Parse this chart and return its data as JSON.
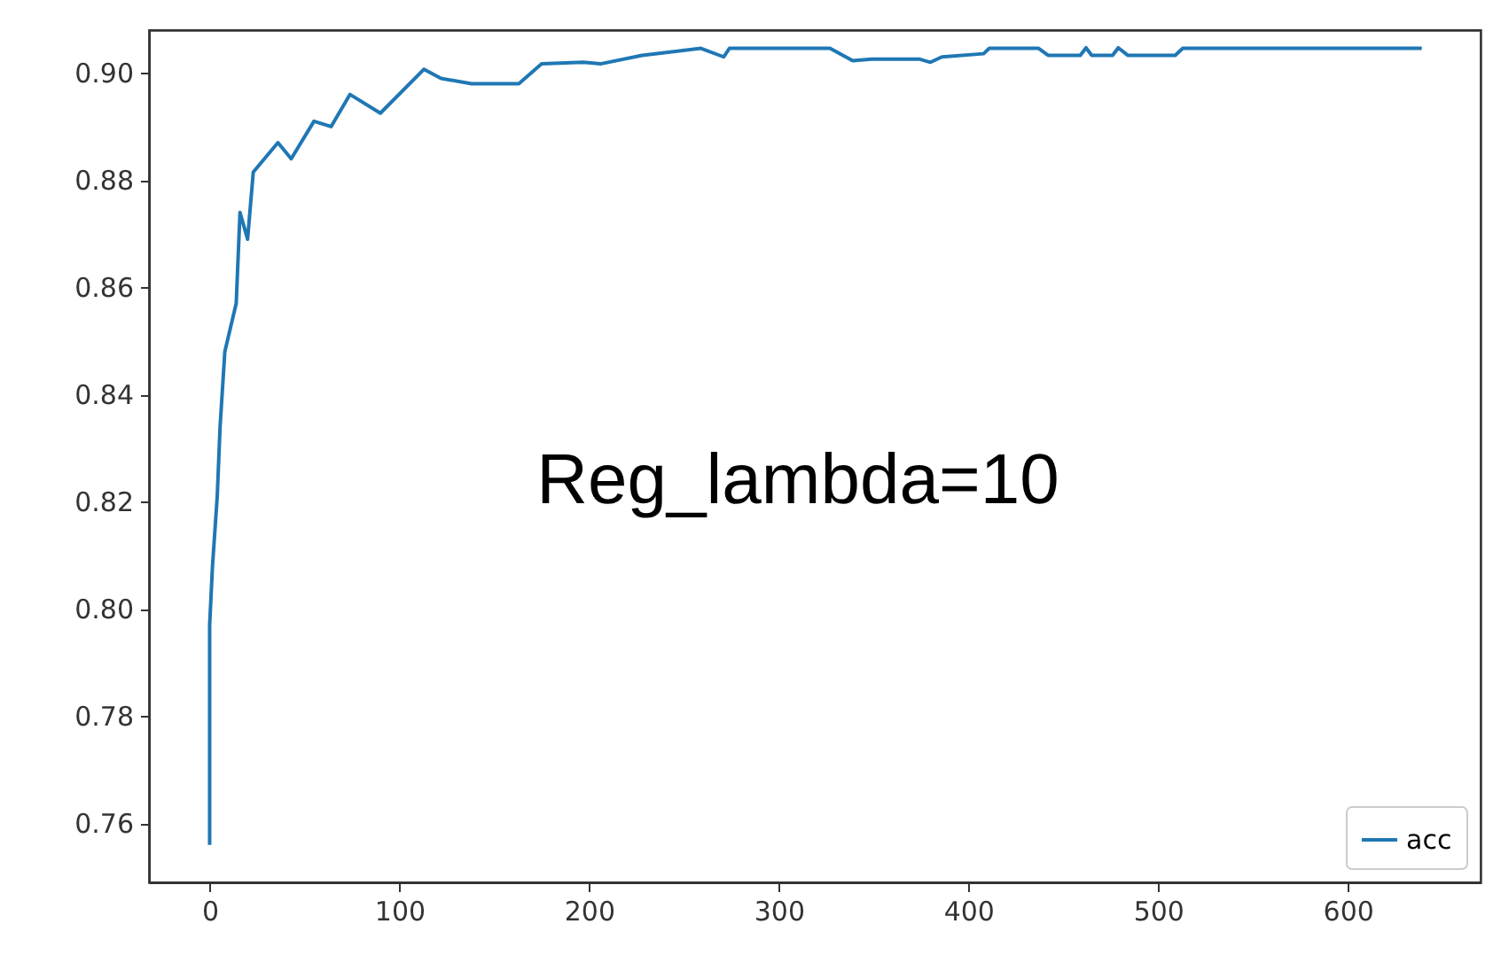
{
  "chart_data": {
    "type": "line",
    "x": [
      0,
      0,
      1.5,
      4,
      5.5,
      8,
      14,
      16,
      20,
      23,
      36,
      43,
      55,
      64,
      74,
      90,
      113,
      122,
      138,
      163,
      175,
      197,
      206,
      228,
      259,
      271,
      274,
      327,
      339,
      349,
      374,
      380,
      386,
      408,
      411,
      437,
      442,
      459,
      462,
      465,
      476,
      479,
      484,
      509,
      513,
      639
    ],
    "series": [
      {
        "name": "acc",
        "color": "#1f77b4",
        "values": [
          0.756,
          0.797,
          0.808,
          0.821,
          0.834,
          0.848,
          0.857,
          0.874,
          0.869,
          0.8815,
          0.887,
          0.884,
          0.891,
          0.89,
          0.896,
          0.8925,
          0.9007,
          0.899,
          0.898,
          0.898,
          0.9017,
          0.902,
          0.9017,
          0.9033,
          0.9046,
          0.903,
          0.9046,
          0.9046,
          0.9023,
          0.9026,
          0.9026,
          0.902,
          0.903,
          0.9036,
          0.9046,
          0.9046,
          0.9033,
          0.9033,
          0.9047,
          0.9033,
          0.9033,
          0.9047,
          0.9033,
          0.9033,
          0.9046,
          0.9046
        ]
      }
    ],
    "xlim": [
      -32,
      670
    ],
    "xticks": [
      0,
      100,
      200,
      300,
      400,
      500,
      600
    ],
    "ylim": [
      0.749,
      0.908
    ],
    "yticks": [
      {
        "value": 0.76,
        "label": "0.76"
      },
      {
        "value": 0.78,
        "label": "0.78"
      },
      {
        "value": 0.8,
        "label": "0.80"
      },
      {
        "value": 0.82,
        "label": "0.82"
      },
      {
        "value": 0.84,
        "label": "0.84"
      },
      {
        "value": 0.86,
        "label": "0.86"
      },
      {
        "value": 0.88,
        "label": "0.88"
      },
      {
        "value": 0.9,
        "label": "0.90"
      }
    ],
    "annotations": [
      "Reg_lambda=10"
    ],
    "legend": "bottom right",
    "grid": false
  }
}
